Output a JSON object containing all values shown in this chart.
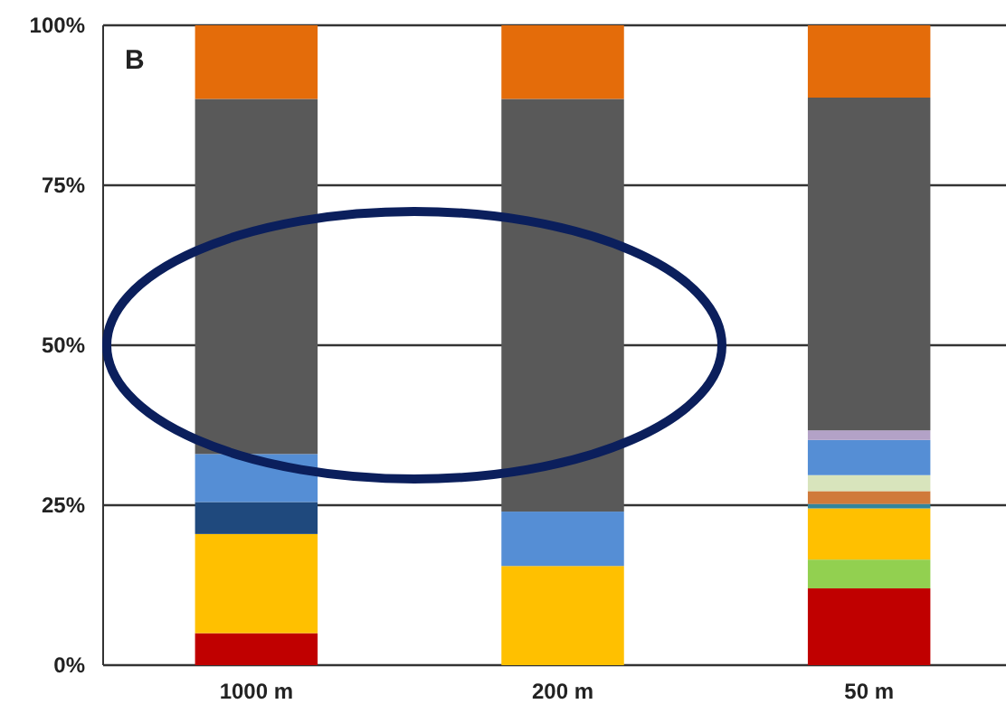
{
  "chart_data": {
    "type": "bar",
    "stacked": true,
    "categories": [
      "1000 m",
      "200 m",
      "50 m"
    ],
    "series": [
      {
        "color": "#c00000",
        "values": [
          5,
          0,
          12
        ]
      },
      {
        "color": "#92d050",
        "values": [
          0,
          0,
          4.5
        ]
      },
      {
        "color": "#ffc000",
        "values": [
          15.5,
          15.5,
          8
        ]
      },
      {
        "color": "#31859c",
        "values": [
          0,
          0,
          0.7
        ]
      },
      {
        "color": "#d07a3a",
        "values": [
          0,
          0,
          2
        ]
      },
      {
        "color": "#d8e4bc",
        "values": [
          0,
          0,
          2.5
        ]
      },
      {
        "color": "#1f497d",
        "values": [
          5,
          0,
          0
        ]
      },
      {
        "color": "#558ed5",
        "values": [
          7.5,
          8.5,
          5.5
        ]
      },
      {
        "color": "#b3a2c7",
        "values": [
          0,
          0,
          1.5
        ]
      },
      {
        "color": "#595959",
        "values": [
          55.5,
          64.5,
          52
        ]
      },
      {
        "color": "#e46c0a",
        "values": [
          11.5,
          11.5,
          11.3
        ]
      }
    ],
    "ylim": [
      0,
      100
    ],
    "yticks": [
      {
        "value": 0,
        "label": "0%"
      },
      {
        "value": 25,
        "label": "25%"
      },
      {
        "value": 50,
        "label": "50%"
      },
      {
        "value": 75,
        "label": "75%"
      },
      {
        "value": 100,
        "label": "100%"
      }
    ],
    "grid": "y",
    "annotations": [
      "B"
    ]
  }
}
